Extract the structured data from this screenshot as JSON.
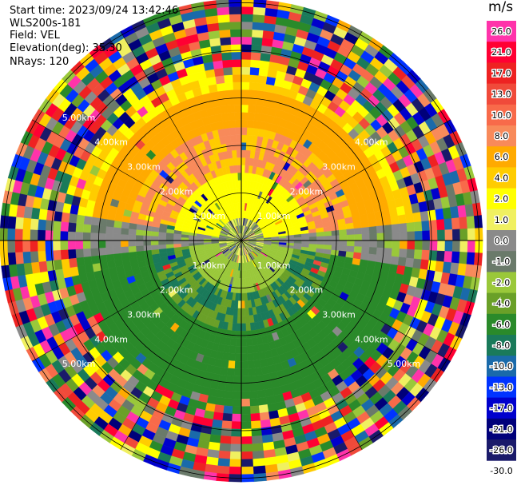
{
  "header": {
    "start_time": "Start time: 2023/09/24 13:42:46",
    "instrument": "WLS200s-181",
    "field": "Field: VEL",
    "elevation": "Elevation(deg): 35.30",
    "nrays": "NRays: 120"
  },
  "colorbar": {
    "unit": "m/s",
    "levels": [
      {
        "label": "26.0",
        "color": "#ff33aa"
      },
      {
        "label": "21.0",
        "color": "#ff0033"
      },
      {
        "label": "17.0",
        "color": "#ee2222"
      },
      {
        "label": "13.0",
        "color": "#f04a3a"
      },
      {
        "label": "10.0",
        "color": "#f86a4a"
      },
      {
        "label": "8.0",
        "color": "#f88a5a"
      },
      {
        "label": "6.0",
        "color": "#ffaa00"
      },
      {
        "label": "4.0",
        "color": "#ffcc00"
      },
      {
        "label": "2.0",
        "color": "#ffff00"
      },
      {
        "label": "1.0",
        "color": "#f0f060"
      },
      {
        "label": "0.0",
        "color": "#8a8a8a"
      },
      {
        "label": "-1.0",
        "color": "#6a7a6a"
      },
      {
        "label": "-2.0",
        "color": "#9ac83a"
      },
      {
        "label": "-4.0",
        "color": "#6aa028"
      },
      {
        "label": "-6.0",
        "color": "#2a8a2a"
      },
      {
        "label": "-8.0",
        "color": "#1a7a5a"
      },
      {
        "label": "-10.0",
        "color": "#1a6aaa"
      },
      {
        "label": "-13.0",
        "color": "#0033ff"
      },
      {
        "label": "-17.0",
        "color": "#0000cc"
      },
      {
        "label": "-21.0",
        "color": "#00007a"
      },
      {
        "label": "-26.0",
        "color": "#1a1a6a"
      },
      {
        "label": "-30.0",
        "color": ""
      }
    ]
  },
  "chart_data": {
    "type": "ppi",
    "field": "VEL",
    "unit": "m/s",
    "rays": 120,
    "elevation_deg": 35.3,
    "range_rings_km": [
      1,
      2,
      3,
      4,
      5
    ],
    "ring_labels": {
      "ne": [
        "1.00km",
        "2.00km",
        "3.00km",
        "4.00km"
      ],
      "nw": [
        "1.00km",
        "2.00km",
        "3.00km",
        "4.00km",
        "5.00km"
      ],
      "se": [
        "1.00km",
        "2.00km",
        "3.00km",
        "4.00km",
        "5.00km"
      ],
      "sw": [
        "1.00km",
        "2.00km",
        "3.00km",
        "4.00km",
        "5.00km"
      ]
    }
  }
}
